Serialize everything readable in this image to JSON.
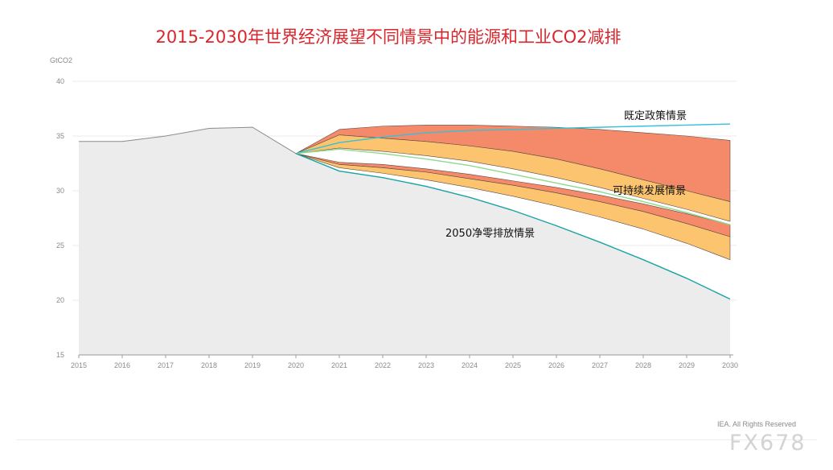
{
  "chart_data": {
    "type": "area",
    "title": "2015-2030年世界经济展望不同情景中的能源和工业CO2减排",
    "ylabel": "GtCO2",
    "xlabel": "",
    "ylim": [
      15,
      40
    ],
    "yticks": [
      "15",
      "20",
      "25",
      "30",
      "35",
      "40"
    ],
    "xticks": [
      "2015",
      "2016",
      "2017",
      "2018",
      "2019",
      "2020",
      "2021",
      "2022",
      "2023",
      "2024",
      "2025",
      "2026",
      "2027",
      "2028",
      "2029",
      "2030"
    ],
    "grid": true,
    "historical": {
      "x": [
        2015,
        2016,
        2017,
        2018,
        2019,
        2020
      ],
      "values": [
        34.5,
        34.5,
        35.0,
        35.7,
        35.8,
        33.4
      ]
    },
    "series": [
      {
        "name": "既定政策情景",
        "x": [
          2020,
          2021,
          2022,
          2023,
          2024,
          2025,
          2026,
          2027,
          2028,
          2029,
          2030
        ],
        "values": [
          33.4,
          34.4,
          34.9,
          35.3,
          35.5,
          35.6,
          35.7,
          35.8,
          35.9,
          36.0,
          36.1
        ]
      },
      {
        "name": "可持续发展情景",
        "x": [
          2020,
          2021,
          2022,
          2023,
          2024,
          2025,
          2026,
          2027,
          2028,
          2029,
          2030
        ],
        "values": [
          33.4,
          33.8,
          33.4,
          32.9,
          32.3,
          31.5,
          30.7,
          29.9,
          29.0,
          28.0,
          26.9
        ]
      },
      {
        "name": "2050净零排放情景",
        "x": [
          2020,
          2021,
          2022,
          2023,
          2024,
          2025,
          2026,
          2027,
          2028,
          2029,
          2030
        ],
        "values": [
          33.4,
          31.8,
          31.2,
          30.4,
          29.4,
          28.2,
          26.8,
          25.3,
          23.7,
          22.0,
          20.1
        ]
      }
    ],
    "bands": [
      {
        "color": "#f58a6b",
        "x": [
          2020,
          2021,
          2022,
          2023,
          2024,
          2025,
          2026,
          2027,
          2028,
          2029,
          2030
        ],
        "upper": [
          33.4,
          35.6,
          35.9,
          36.0,
          36.0,
          35.9,
          35.8,
          35.6,
          35.3,
          35.0,
          34.6
        ],
        "lower": [
          33.4,
          35.1,
          34.8,
          34.5,
          34.1,
          33.6,
          32.9,
          32.0,
          31.0,
          30.0,
          29.0
        ]
      },
      {
        "color": "#fcc46e",
        "x": [
          2020,
          2021,
          2022,
          2023,
          2024,
          2025,
          2026,
          2027,
          2028,
          2029,
          2030
        ],
        "upper": [
          33.4,
          35.1,
          34.8,
          34.5,
          34.1,
          33.6,
          32.9,
          32.0,
          31.0,
          30.0,
          29.0
        ],
        "lower": [
          33.4,
          33.9,
          33.6,
          33.2,
          32.7,
          32.0,
          31.2,
          30.3,
          29.3,
          28.3,
          27.2
        ]
      },
      {
        "color": "#f58a6b",
        "x": [
          2020,
          2021,
          2022,
          2023,
          2024,
          2025,
          2026,
          2027,
          2028,
          2029,
          2030
        ],
        "upper": [
          33.4,
          32.6,
          32.4,
          32.0,
          31.5,
          30.9,
          30.3,
          29.6,
          28.8,
          27.9,
          26.9
        ],
        "lower": [
          33.4,
          32.4,
          32.1,
          31.7,
          31.1,
          30.5,
          29.8,
          29.0,
          28.1,
          27.0,
          25.8
        ]
      },
      {
        "color": "#fcc46e",
        "x": [
          2020,
          2021,
          2022,
          2023,
          2024,
          2025,
          2026,
          2027,
          2028,
          2029,
          2030
        ],
        "upper": [
          33.4,
          32.4,
          32.1,
          31.7,
          31.1,
          30.5,
          29.8,
          29.0,
          28.1,
          27.0,
          25.8
        ],
        "lower": [
          33.4,
          32.1,
          31.6,
          31.0,
          30.3,
          29.5,
          28.6,
          27.6,
          26.5,
          25.2,
          23.7
        ]
      }
    ],
    "colors": {
      "historical_fill": "#ececec",
      "historical_line": "#8c8c8c",
      "steps": "#35c1d6",
      "sds": "#8fd98a",
      "nze": "#1aa3a3"
    }
  },
  "copyright": "IEA. All Rights Reserved",
  "watermark": "FX678"
}
